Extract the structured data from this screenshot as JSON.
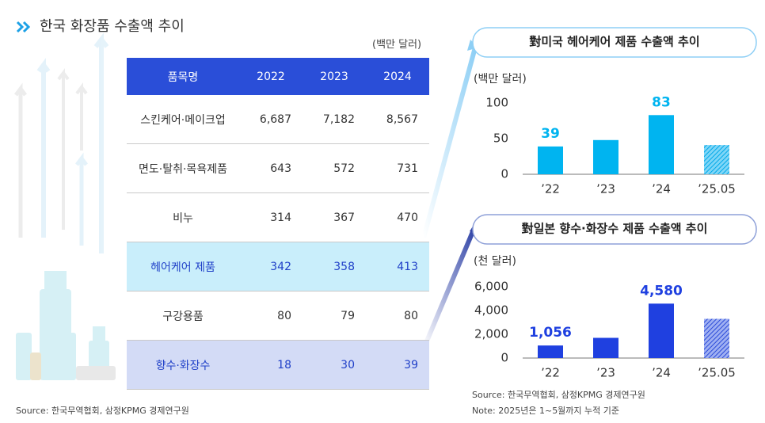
{
  "header": {
    "title": "한국 화장품 수출액 추이"
  },
  "table": {
    "unit": "(백만 달러)",
    "columns": [
      "품목명",
      "2022",
      "2023",
      "2024"
    ],
    "rows": [
      [
        "스킨케어·메이크업",
        "6,687",
        "7,182",
        "8,567"
      ],
      [
        "면도·탈취·목욕제품",
        "643",
        "572",
        "731"
      ],
      [
        "비누",
        "314",
        "367",
        "470"
      ],
      [
        "헤어케어 제품",
        "342",
        "358",
        "413"
      ],
      [
        "구강용품",
        "80",
        "79",
        "80"
      ],
      [
        "향수·화장수",
        "18",
        "30",
        "39"
      ]
    ]
  },
  "chart_data": [
    {
      "type": "bar",
      "title": "對미국 헤어케어 제품 수출액 추이",
      "y_label": "(백만 달러)",
      "categories": [
        "’22",
        "’23",
        "’24",
        "’25.05"
      ],
      "values": [
        39,
        48,
        83,
        41
      ],
      "value_labels": [
        "39",
        null,
        "83",
        null
      ],
      "hatched": [
        false,
        false,
        false,
        true
      ],
      "color": "#00b4f0",
      "ylim": [
        0,
        100
      ],
      "yticks": [
        0,
        50,
        100
      ]
    },
    {
      "type": "bar",
      "title": "對일본 향수·화장수 제품 수출액 추이",
      "y_label": "(천 달러)",
      "categories": [
        "’22",
        "’23",
        "’24",
        "’25.05"
      ],
      "values": [
        1056,
        1700,
        4580,
        3300
      ],
      "value_labels": [
        "1,056",
        null,
        "4,580",
        null
      ],
      "hatched": [
        false,
        false,
        false,
        true
      ],
      "color": "#1f40e0",
      "ylim": [
        0,
        6000
      ],
      "yticks": [
        0,
        {
          "value": 2000,
          "label": "2,000"
        },
        {
          "value": 4000,
          "label": "4,000"
        },
        {
          "value": 6000,
          "label": "6,000"
        }
      ]
    }
  ],
  "footer": {
    "source_left": "Source: 한국무역협회, 삼정KPMG 경제연구원",
    "source_right": "Source: 한국무역협회, 삼정KPMG 경제연구원",
    "note": "Note: 2025년은 1~5월까지 누적 기준"
  }
}
